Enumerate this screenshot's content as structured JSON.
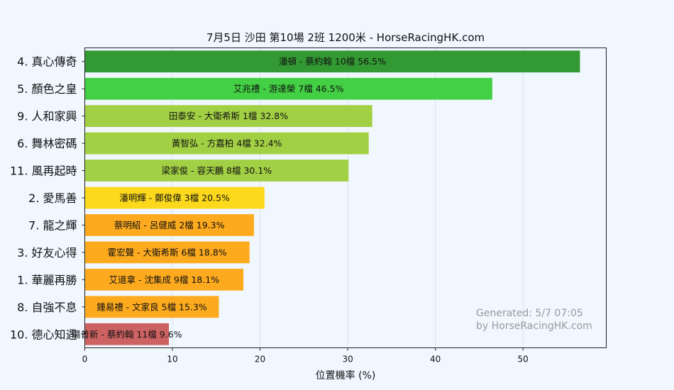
{
  "chart_data": {
    "type": "bar",
    "orientation": "horizontal",
    "title": "7月5日  沙田  第10場  2班  1200米 - HorseRacingHK.com",
    "xlabel": "位置機率 (%)",
    "xlim": [
      0,
      59.5
    ],
    "xticks": [
      "0",
      "10",
      "20",
      "30",
      "40",
      "50"
    ],
    "grid": "vertical",
    "categories": [
      "4. 真心傳奇",
      "5. 顏色之皇",
      "9. 人和家興",
      "6. 舞林密碼",
      "11. 風再起時",
      "2. 愛馬善",
      "7. 龍之輝",
      "3. 好友心得",
      "1. 華麗再勝",
      "8. 自強不息",
      "10. 德心知遇"
    ],
    "values": [
      56.5,
      46.5,
      32.8,
      32.4,
      30.1,
      20.5,
      19.3,
      18.8,
      18.1,
      15.3,
      9.6
    ],
    "bar_labels": [
      "潘頓 - 蔡約翰 10檔  56.5%",
      "艾兆禮 - 游達榮 7檔  46.5%",
      "田泰安 - 大衛希斯 1檔  32.8%",
      "黃智弘 - 方嘉柏 4檔  32.4%",
      "梁家俊 - 容天鵬 8檔  30.1%",
      "潘明輝 - 鄭俊偉 3檔  20.5%",
      "蔡明紹 - 呂健威 2檔  19.3%",
      "霍宏聲 - 大衛希斯 6檔  18.8%",
      "艾道拿 - 沈集成 9檔  18.1%",
      "鍾易禮 - 文家良 5檔  15.3%",
      "湯普新 - 蔡約翰 11檔  9.6%"
    ],
    "colors": [
      "#339933",
      "#44d044",
      "#a2d044",
      "#a2d044",
      "#a2d044",
      "#fcd91c",
      "#fdaa1e",
      "#fdaa1e",
      "#fdaa1e",
      "#fdaa1e",
      "#cd6262"
    ]
  },
  "watermark": {
    "line1": "Generated: 5/7 07:05",
    "line2": "by HorseRacingHK.com"
  }
}
